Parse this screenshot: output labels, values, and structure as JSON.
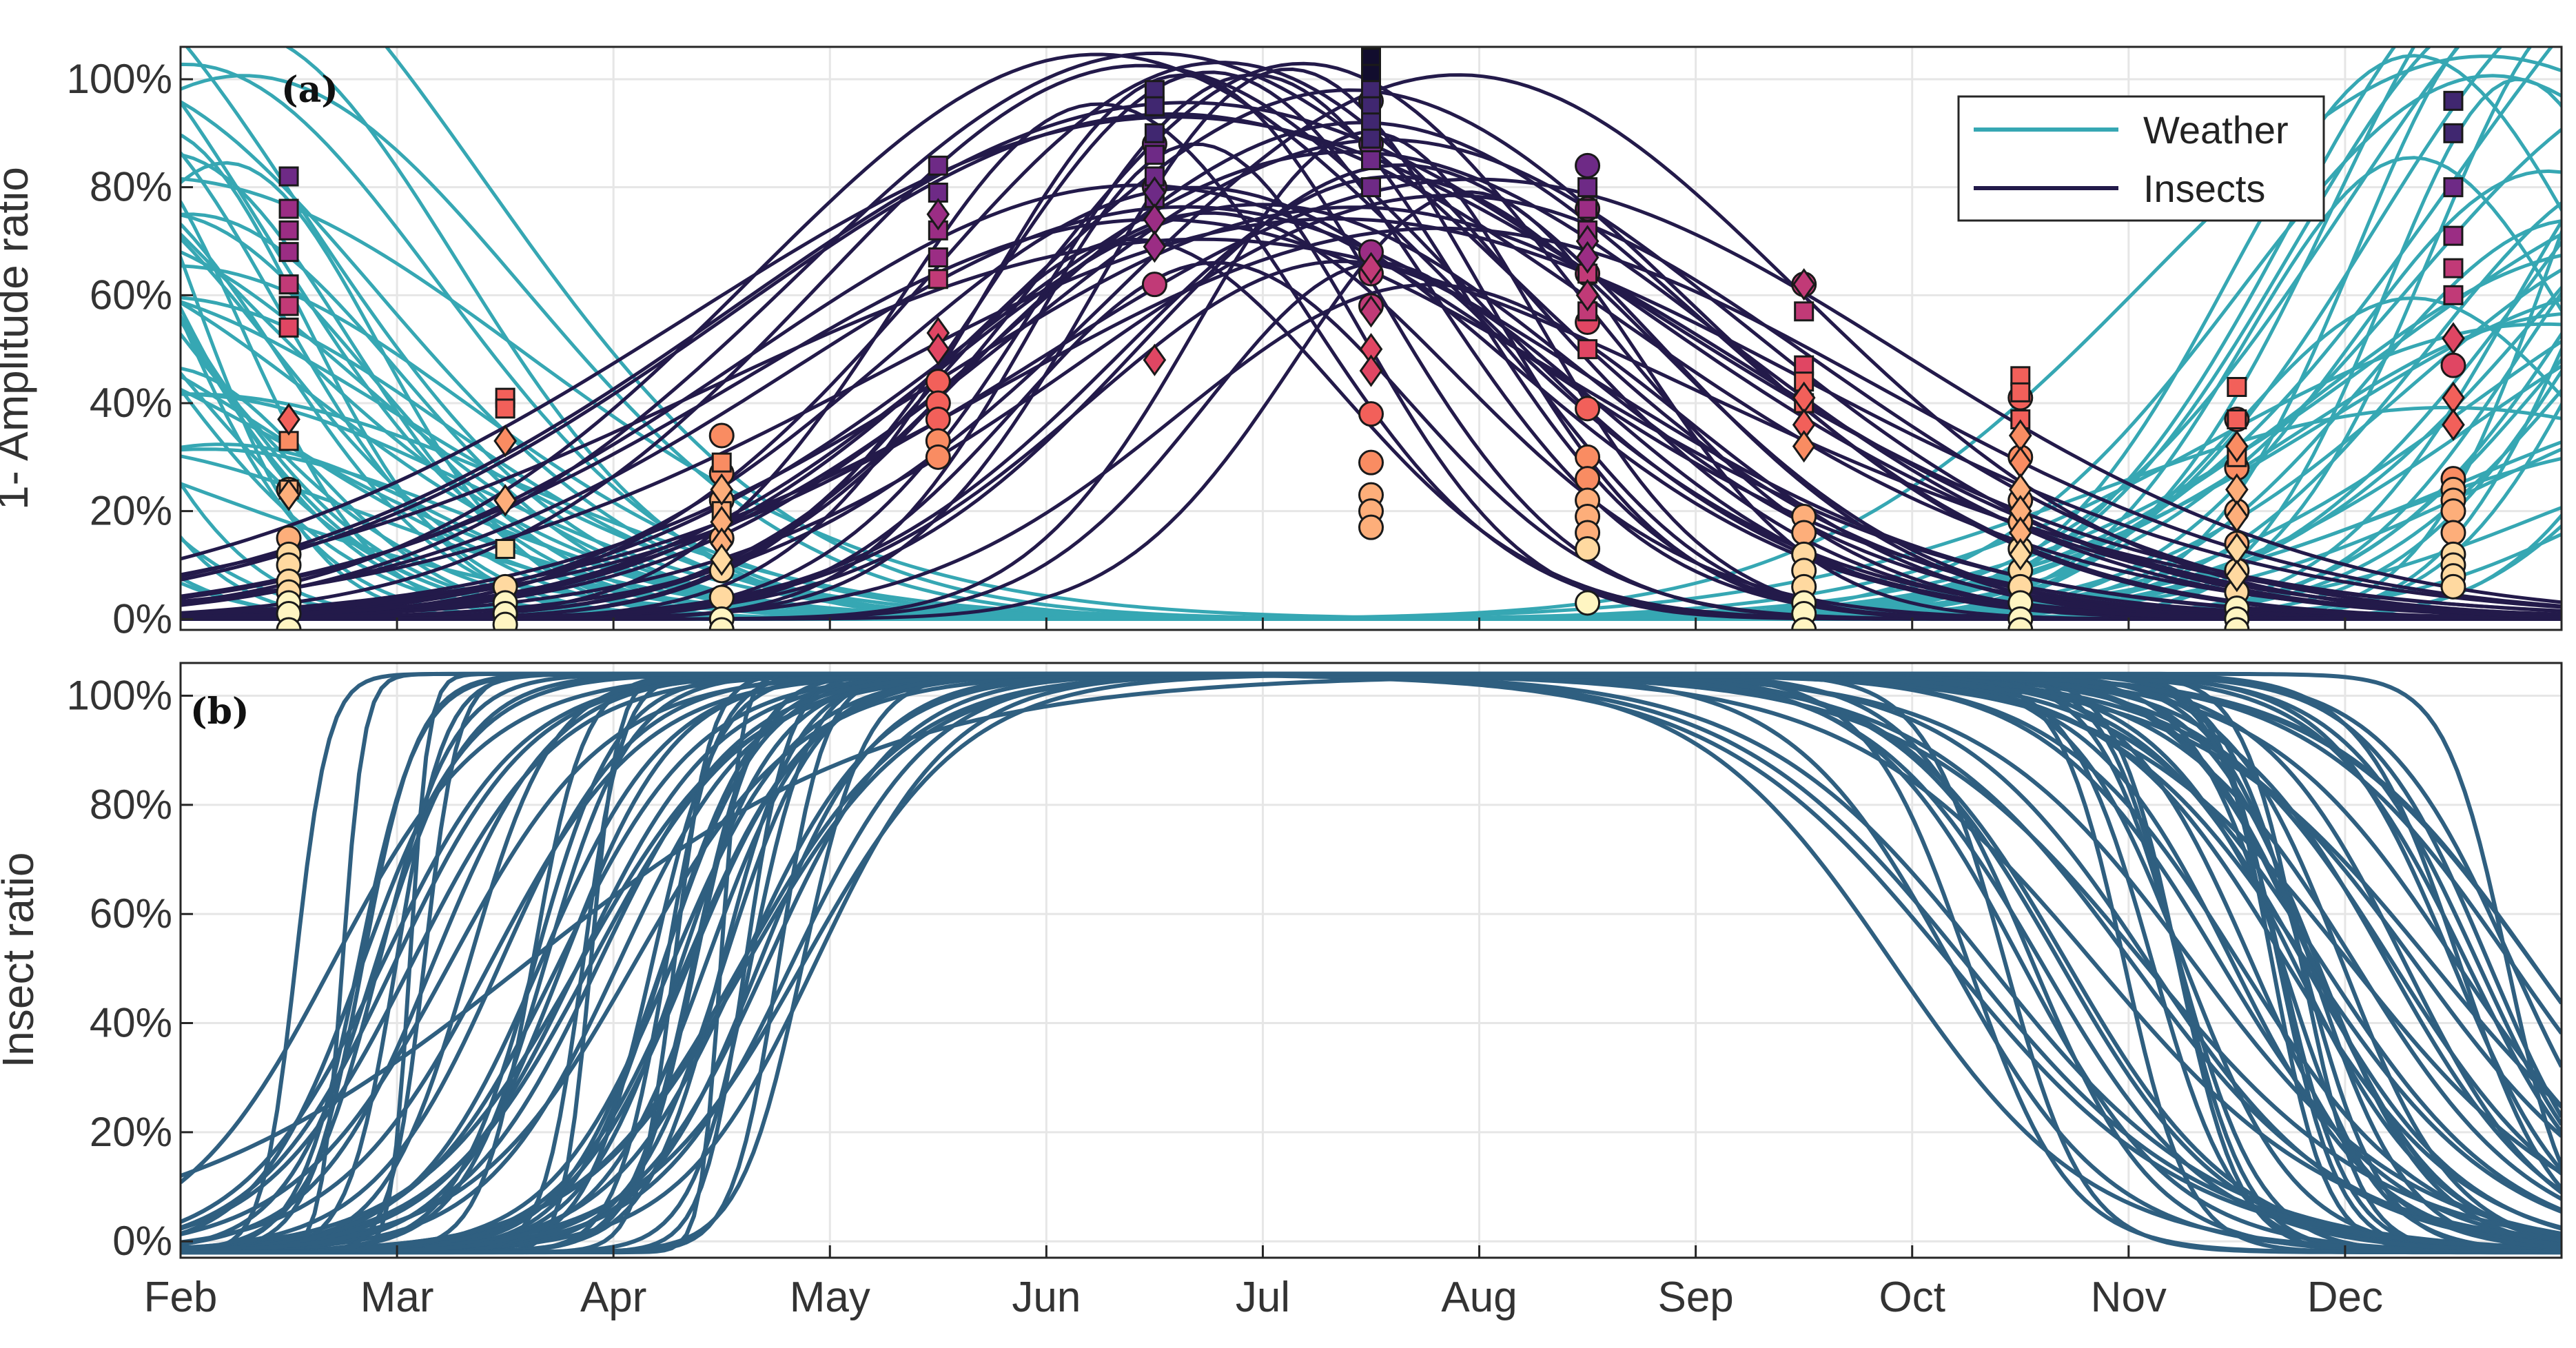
{
  "colors": {
    "weather": "#36a7b3",
    "insects": "#231a4a",
    "insect_ratio": "#2f5f80",
    "grid": "#e6e6e6",
    "axis": "#262626",
    "marker_scale": [
      "#fff5c2",
      "#ffd9a0",
      "#fdae7a",
      "#f98c62",
      "#f2605a",
      "#e04663",
      "#c13a77",
      "#9b2d84",
      "#6e2a86",
      "#402770",
      "#120d2e"
    ]
  },
  "chart_data": [
    {
      "type": "line",
      "panel_label": "(a)",
      "ylabel": "1- Amplitude ratio",
      "xlabel": "",
      "x_tick_labels": [
        "Feb",
        "Mar",
        "Apr",
        "May",
        "Jun",
        "Jul",
        "Aug",
        "Sep",
        "Oct",
        "Nov",
        "Dec"
      ],
      "x_domain_months": [
        0,
        11
      ],
      "ylim": [
        -2,
        106
      ],
      "y_ticks": [
        0,
        20,
        40,
        60,
        80,
        100
      ],
      "y_tick_labels": [
        "0%",
        "20%",
        "40%",
        "60%",
        "80%",
        "100%"
      ],
      "grid": true,
      "legend": {
        "placement": "top-right",
        "entries": [
          {
            "label": "Weather",
            "color_key": "weather"
          },
          {
            "label": "Insects",
            "color_key": "insects"
          }
        ]
      },
      "series": [
        {
          "name": "Weather",
          "shape": "gaussian",
          "count": 45,
          "peak_position_range": [
            10.3,
            12.3
          ],
          "width_range": [
            0.45,
            1.7
          ],
          "amplitude_range": [
            0.3,
            1.35
          ],
          "description": "Winter-peaking curves, high in Jan/Feb and Dec, near 0% from May to Sep"
        },
        {
          "name": "Insects",
          "shape": "gaussian",
          "count": 40,
          "peak_position_range": [
            4.0,
            6.0
          ],
          "width_range": [
            0.75,
            2.3
          ],
          "amplitude_range": [
            0.6,
            1.06
          ],
          "description": "Summer-peaking curves, maximum between June and July"
        }
      ],
      "markers": {
        "x_months": [
          0.5,
          1.5,
          2.5,
          3.5,
          4.5,
          5.5,
          6.5,
          7.5,
          8.5,
          9.5,
          10.5
        ],
        "month_labels": [
          "Feb",
          "Mar",
          "Apr",
          "May",
          "Jun",
          "Jul",
          "Aug",
          "Sep",
          "Oct",
          "Nov",
          "Dec"
        ],
        "circles": [
          [
            24,
            15,
            12,
            10,
            7,
            5,
            3,
            1,
            -2
          ],
          [
            6,
            3,
            1,
            -1
          ],
          [
            34,
            27,
            22,
            15,
            9,
            4,
            0,
            -2
          ],
          [
            44,
            40,
            37,
            33,
            30
          ],
          [
            88,
            80,
            62
          ],
          [
            96,
            88,
            68,
            64,
            58,
            38,
            29,
            23,
            20,
            17
          ],
          [
            84,
            76,
            64,
            55,
            39,
            30,
            26,
            22,
            19,
            16,
            13,
            3
          ],
          [
            62,
            19,
            16,
            12,
            9,
            6,
            3,
            1,
            -2
          ],
          [
            41,
            30,
            22,
            18,
            13,
            9,
            6,
            3,
            0,
            -2
          ],
          [
            37,
            28,
            20,
            14,
            9,
            5,
            2,
            0,
            -2
          ],
          [
            47,
            26,
            24,
            22,
            20,
            16,
            12,
            10,
            8,
            6
          ]
        ],
        "squares": [
          [
            82,
            76,
            72,
            68,
            62,
            58,
            54,
            33,
            24
          ],
          [
            41,
            39,
            13
          ],
          [
            29,
            20
          ],
          [
            84,
            79,
            72,
            67,
            63
          ],
          [
            98,
            95,
            90,
            86,
            82,
            78
          ],
          [
            104,
            101,
            98,
            95,
            92,
            89,
            85,
            80
          ],
          [
            80,
            76,
            72,
            64,
            57,
            50
          ],
          [
            57,
            47,
            44,
            40
          ],
          [
            45,
            42,
            37
          ],
          [
            43,
            37,
            30
          ],
          [
            96,
            90,
            80,
            71,
            65,
            60
          ]
        ],
        "diamonds": [
          [
            37,
            23
          ],
          [
            33,
            22
          ],
          [
            24,
            18,
            14,
            11
          ],
          [
            75,
            53,
            50
          ],
          [
            79,
            74,
            69,
            48
          ],
          [
            65,
            57,
            50,
            46
          ],
          [
            70,
            67,
            60
          ],
          [
            62,
            41,
            36,
            32
          ],
          [
            34,
            29,
            24,
            20,
            16,
            12
          ],
          [
            32,
            24,
            19,
            13,
            8
          ],
          [
            52,
            41,
            36
          ]
        ]
      }
    },
    {
      "type": "line",
      "panel_label": "(b)",
      "ylabel": "Insect ratio",
      "xlabel": "",
      "x_tick_labels": [
        "Feb",
        "Mar",
        "Apr",
        "May",
        "Jun",
        "Jul",
        "Aug",
        "Sep",
        "Oct",
        "Nov",
        "Dec"
      ],
      "x_domain_months": [
        0,
        11
      ],
      "ylim": [
        -3,
        106
      ],
      "y_ticks": [
        0,
        20,
        40,
        60,
        80,
        100
      ],
      "y_tick_labels": [
        "0%",
        "20%",
        "40%",
        "60%",
        "80%",
        "100%"
      ],
      "grid": true,
      "series": [
        {
          "name": "Insect ratio curves",
          "shape": "double-sigmoid",
          "count": 60,
          "rise_midpoint_range": [
            0.5,
            2.95
          ],
          "fall_midpoint_range": [
            7.7,
            10.9
          ],
          "baseline": -2,
          "plateau": 104,
          "description": "Rise from 0% in Feb-Apr to 100% plateau May-Aug, then decline Sep-Dec"
        }
      ]
    }
  ]
}
